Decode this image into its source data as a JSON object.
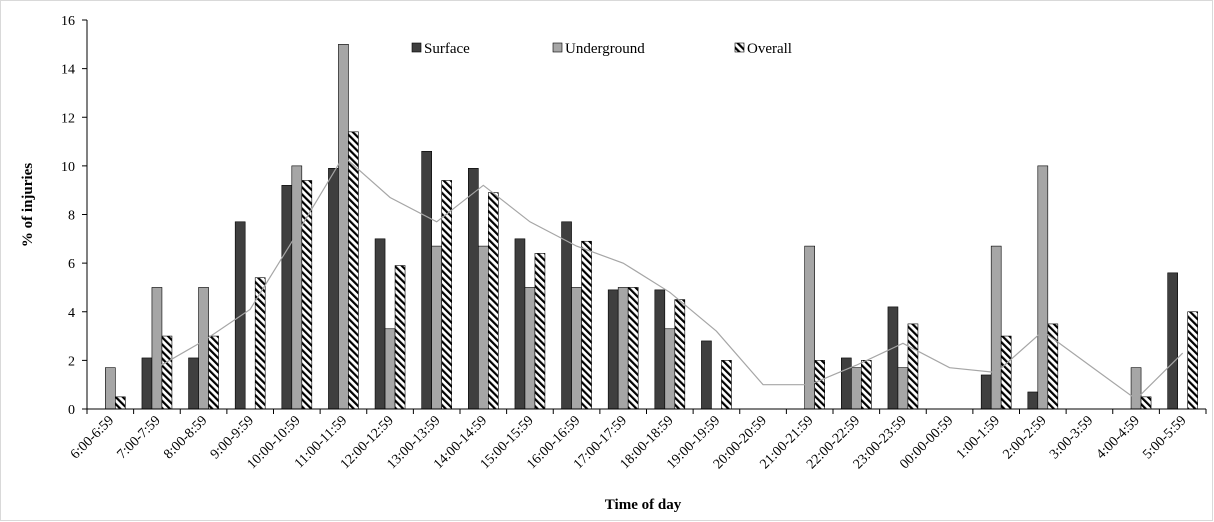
{
  "chart_data": {
    "type": "bar",
    "xlabel": "Time of day",
    "ylabel": "% of injuries",
    "ylim": [
      0,
      16
    ],
    "yticks": [
      0,
      2,
      4,
      6,
      8,
      10,
      12,
      14,
      16
    ],
    "grid": false,
    "legend_position": "top-center",
    "categories": [
      "6:00-6:59",
      "7:00-7:59",
      "8:00-8:59",
      "9:00-9:59",
      "10:00-10:59",
      "11:00-11:59",
      "12:00-12:59",
      "13:00-13:59",
      "14:00-14:59",
      "15:00-15:59",
      "16:00-16:59",
      "17:00-17:59",
      "18:00-18:59",
      "19:00-19:59",
      "20:00-20:59",
      "21:00-21:59",
      "22:00-22:59",
      "23:00-23:59",
      "00:00-00:59",
      "1:00-1:59",
      "2:00-2:59",
      "3:00-3:59",
      "4:00-4:59",
      "5:00-5:59"
    ],
    "series": [
      {
        "name": "Surface",
        "color": "#3f3f3f",
        "pattern": "solid",
        "values": [
          0,
          2.1,
          2.1,
          7.7,
          9.2,
          9.9,
          7.0,
          10.6,
          9.9,
          7.0,
          7.7,
          4.9,
          4.9,
          2.8,
          0,
          0,
          2.1,
          4.2,
          0,
          1.4,
          0.7,
          0,
          0,
          5.6
        ]
      },
      {
        "name": "Underground",
        "color": "#a6a6a6",
        "pattern": "solid",
        "values": [
          1.7,
          5.0,
          5.0,
          0,
          10.0,
          15.0,
          3.3,
          6.7,
          6.7,
          5.0,
          5.0,
          5.0,
          3.3,
          0,
          0,
          6.7,
          1.7,
          1.7,
          0,
          6.7,
          10.0,
          0,
          1.7,
          0
        ]
      },
      {
        "name": "Overall",
        "color": "#000000",
        "pattern": "hatched",
        "values": [
          0.5,
          3.0,
          3.0,
          5.4,
          9.4,
          11.4,
          5.9,
          9.4,
          8.9,
          6.4,
          6.9,
          5.0,
          4.5,
          2.0,
          0,
          2.0,
          2.0,
          3.5,
          0,
          3.0,
          3.5,
          0,
          0.5,
          4.0
        ]
      }
    ],
    "trend_line": {
      "color": "#a6a6a6",
      "values": [
        null,
        1.7,
        2.8,
        4.1,
        7.2,
        10.4,
        8.7,
        7.7,
        9.2,
        7.7,
        6.7,
        6.0,
        4.8,
        3.2,
        1.0,
        1.0,
        1.8,
        2.7,
        1.7,
        1.5,
        3.2,
        1.8,
        0.4,
        2.3
      ]
    }
  }
}
